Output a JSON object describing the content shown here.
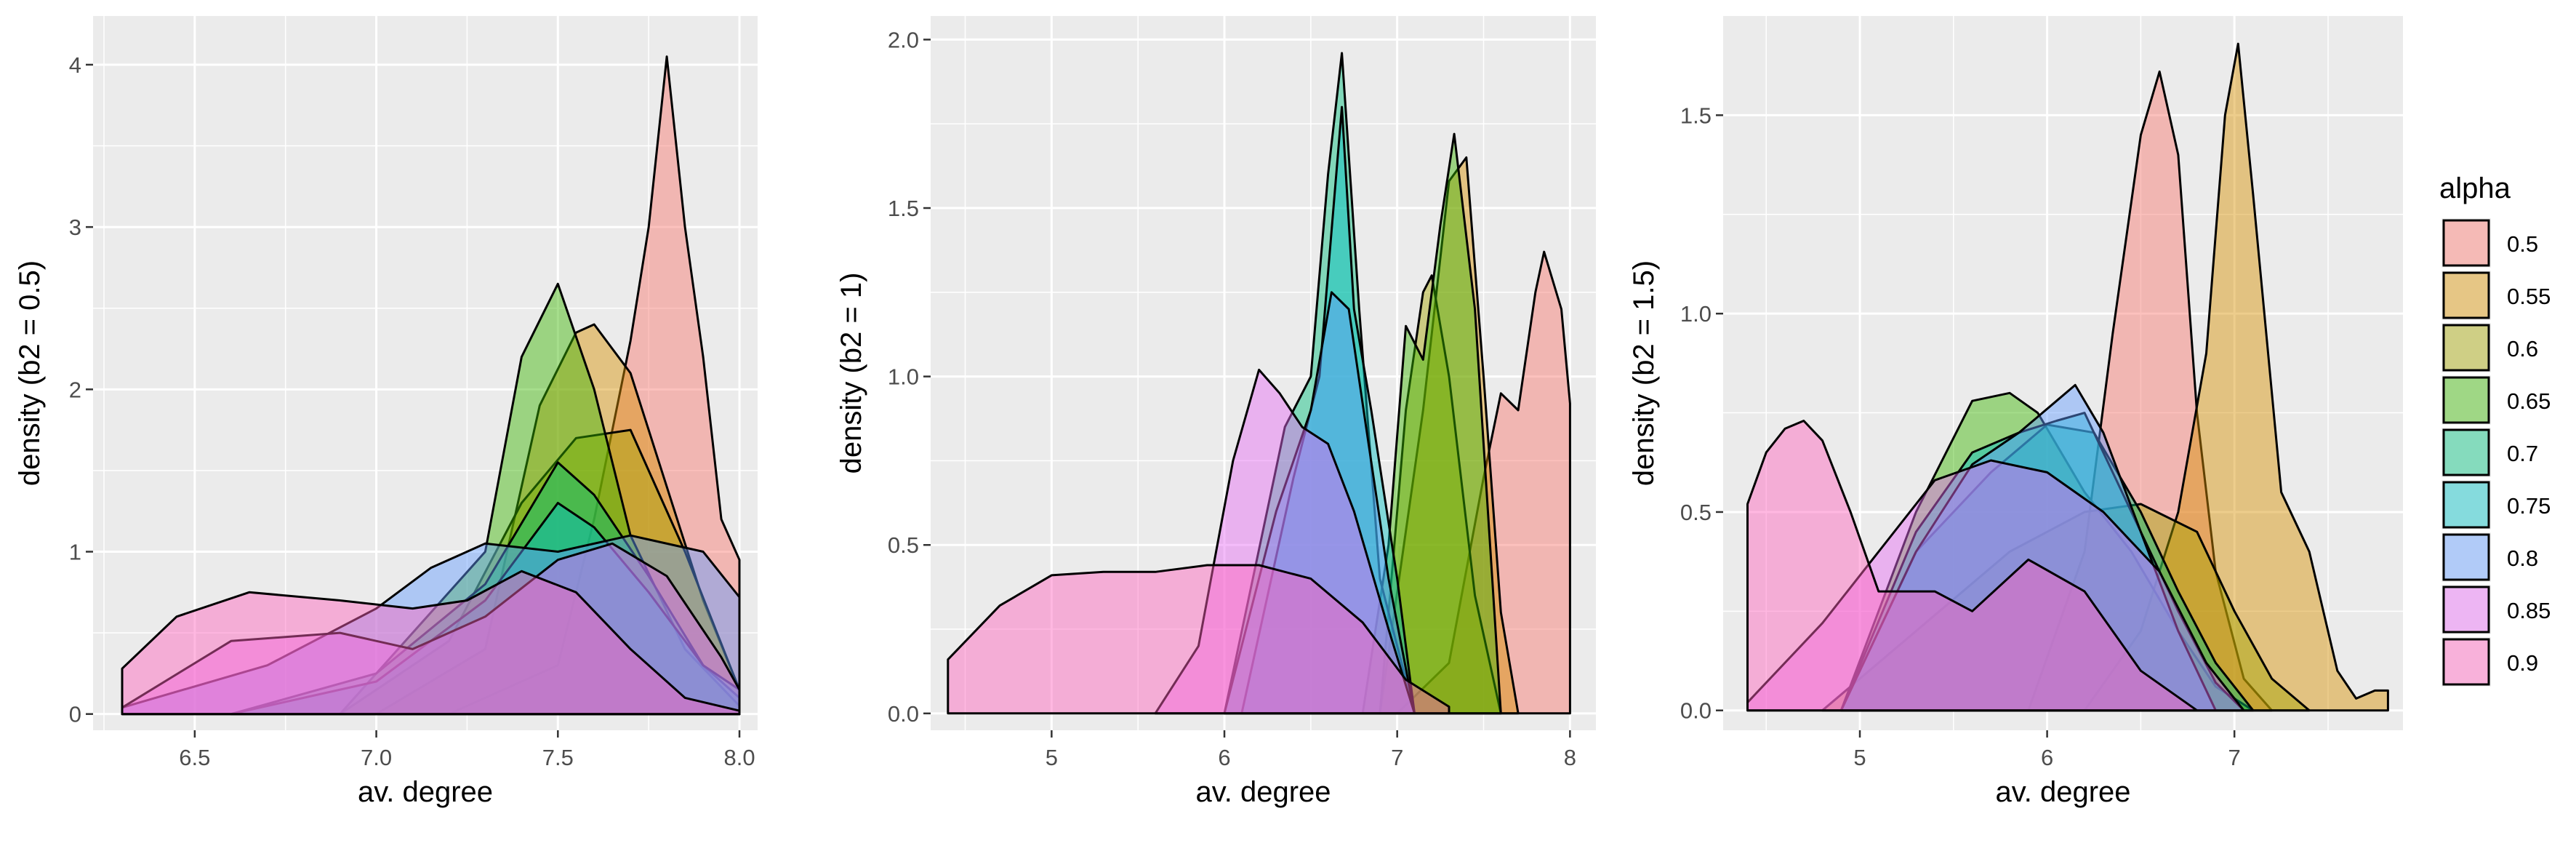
{
  "chart_data": [
    {
      "type": "area",
      "xlabel": "av. degree",
      "ylabel": "density (b2 = 0.5)",
      "xlim": [
        6.22,
        8.05
      ],
      "ylim": [
        -0.1,
        4.3
      ],
      "xticks": [
        6.5,
        7.0,
        7.5,
        8.0
      ],
      "xtick_labels": [
        "6.5",
        "7.0",
        "7.5",
        "8.0"
      ],
      "yticks": [
        0,
        1,
        2,
        3,
        4
      ],
      "ytick_labels": [
        "0",
        "1",
        "2",
        "3",
        "4"
      ],
      "grid": true,
      "series": [
        {
          "name": "0.5",
          "x": [
            7.2,
            7.5,
            7.6,
            7.7,
            7.75,
            7.8,
            7.85,
            7.9,
            7.95,
            8.0
          ],
          "y": [
            0,
            0.3,
            1.2,
            2.3,
            3.0,
            4.05,
            3.0,
            2.2,
            1.2,
            0.95
          ]
        },
        {
          "name": "0.55",
          "x": [
            7.0,
            7.3,
            7.45,
            7.55,
            7.6,
            7.7,
            7.8,
            7.9,
            8.0
          ],
          "y": [
            0,
            0.4,
            1.9,
            2.35,
            2.4,
            2.1,
            1.4,
            0.7,
            0.15
          ]
        },
        {
          "name": "0.6",
          "x": [
            6.9,
            7.2,
            7.4,
            7.55,
            7.7,
            7.85,
            8.0
          ],
          "y": [
            0,
            0.45,
            1.3,
            1.7,
            1.75,
            1.0,
            0.15
          ]
        },
        {
          "name": "0.65",
          "x": [
            6.9,
            7.3,
            7.4,
            7.5,
            7.6,
            7.7,
            7.85,
            8.0
          ],
          "y": [
            0,
            1.0,
            2.2,
            2.65,
            2.0,
            1.1,
            0.4,
            0.05
          ]
        },
        {
          "name": "0.7",
          "x": [
            6.6,
            7.0,
            7.3,
            7.5,
            7.6,
            7.75,
            7.9,
            8.0
          ],
          "y": [
            0,
            0.25,
            0.8,
            1.55,
            1.35,
            0.85,
            0.3,
            0.1
          ]
        },
        {
          "name": "0.75",
          "x": [
            6.6,
            7.0,
            7.3,
            7.5,
            7.6,
            7.75,
            7.9,
            8.0
          ],
          "y": [
            0,
            0.2,
            0.7,
            1.3,
            1.15,
            0.75,
            0.3,
            0.15
          ]
        },
        {
          "name": "0.8",
          "x": [
            6.3,
            6.7,
            7.0,
            7.15,
            7.3,
            7.5,
            7.7,
            7.9,
            8.0
          ],
          "y": [
            0.04,
            0.3,
            0.65,
            0.9,
            1.05,
            1.0,
            1.1,
            1.0,
            0.72
          ]
        },
        {
          "name": "0.85",
          "x": [
            6.3,
            6.6,
            6.9,
            7.1,
            7.3,
            7.5,
            7.65,
            7.8,
            7.95,
            8.0
          ],
          "y": [
            0.04,
            0.45,
            0.5,
            0.4,
            0.6,
            0.95,
            1.05,
            0.85,
            0.35,
            0.15
          ]
        },
        {
          "name": "0.9",
          "x": [
            6.3,
            6.45,
            6.65,
            6.9,
            7.1,
            7.25,
            7.4,
            7.55,
            7.7,
            7.85,
            8.0
          ],
          "y": [
            0.28,
            0.6,
            0.75,
            0.7,
            0.65,
            0.7,
            0.88,
            0.75,
            0.4,
            0.1,
            0.02
          ]
        }
      ]
    },
    {
      "type": "area",
      "xlabel": "av. degree",
      "ylabel": "density (b2 = 1)",
      "xlim": [
        4.3,
        8.15
      ],
      "ylim": [
        -0.05,
        2.07
      ],
      "xticks": [
        5,
        6,
        7,
        8
      ],
      "xtick_labels": [
        "5",
        "6",
        "7",
        "8"
      ],
      "yticks": [
        0,
        0.5,
        1.0,
        1.5,
        2.0
      ],
      "ytick_labels": [
        "0.0",
        "0.5",
        "1.0",
        "1.5",
        "2.0"
      ],
      "grid": true,
      "series": [
        {
          "name": "0.5",
          "x": [
            7.0,
            7.3,
            7.5,
            7.6,
            7.7,
            7.8,
            7.85,
            7.95,
            8.0
          ],
          "y": [
            0,
            0.15,
            0.7,
            0.95,
            0.9,
            1.25,
            1.37,
            1.2,
            0.92
          ]
        },
        {
          "name": "0.55",
          "x": [
            6.9,
            7.15,
            7.3,
            7.4,
            7.5,
            7.6,
            7.7
          ],
          "y": [
            0,
            0.9,
            1.58,
            1.65,
            1.0,
            0.3,
            0
          ]
        },
        {
          "name": "0.6",
          "x": [
            6.9,
            7.05,
            7.15,
            7.2,
            7.3,
            7.45,
            7.6
          ],
          "y": [
            0,
            0.9,
            1.25,
            1.3,
            1.0,
            0.35,
            0
          ]
        },
        {
          "name": "0.65",
          "x": [
            6.8,
            6.95,
            7.05,
            7.15,
            7.25,
            7.33,
            7.45,
            7.6
          ],
          "y": [
            0,
            0.5,
            1.15,
            1.05,
            1.45,
            1.72,
            1.2,
            0
          ]
        },
        {
          "name": "0.7",
          "x": [
            6.0,
            6.35,
            6.5,
            6.6,
            6.68,
            6.78,
            6.9,
            7.1
          ],
          "y": [
            0,
            0.85,
            1.0,
            1.6,
            1.96,
            1.2,
            0.4,
            0
          ]
        },
        {
          "name": "0.75",
          "x": [
            6.1,
            6.4,
            6.55,
            6.68,
            6.75,
            6.85,
            7.0,
            7.1
          ],
          "y": [
            0,
            0.7,
            1.0,
            1.8,
            1.2,
            0.9,
            0.4,
            0
          ]
        },
        {
          "name": "0.8",
          "x": [
            6.0,
            6.3,
            6.5,
            6.62,
            6.72,
            6.82,
            6.95,
            7.1
          ],
          "y": [
            0,
            0.6,
            0.9,
            1.25,
            1.2,
            0.85,
            0.4,
            0
          ]
        },
        {
          "name": "0.85",
          "x": [
            5.6,
            5.85,
            6.05,
            6.2,
            6.32,
            6.45,
            6.6,
            6.75,
            6.95,
            7.1
          ],
          "y": [
            0,
            0.2,
            0.75,
            1.02,
            0.95,
            0.85,
            0.8,
            0.6,
            0.25,
            0
          ]
        },
        {
          "name": "0.9",
          "x": [
            4.4,
            4.7,
            5.0,
            5.3,
            5.6,
            5.9,
            6.2,
            6.5,
            6.8,
            7.05,
            7.3
          ],
          "y": [
            0.16,
            0.32,
            0.41,
            0.42,
            0.42,
            0.44,
            0.44,
            0.4,
            0.27,
            0.1,
            0.02
          ]
        }
      ]
    },
    {
      "type": "area",
      "xlabel": "av. degree",
      "ylabel": "density (b2 = 1.5)",
      "xlim": [
        4.27,
        7.9
      ],
      "ylim": [
        -0.05,
        1.75
      ],
      "xticks": [
        5,
        6,
        7
      ],
      "xtick_labels": [
        "5",
        "6",
        "7"
      ],
      "yticks": [
        0,
        0.5,
        1.0,
        1.5
      ],
      "ytick_labels": [
        "0.0",
        "0.5",
        "1.0",
        "1.5"
      ],
      "grid": true,
      "legend": {
        "title": "alpha",
        "position": "right"
      },
      "series": [
        {
          "name": "0.5",
          "x": [
            5.9,
            6.2,
            6.35,
            6.5,
            6.6,
            6.7,
            6.8,
            6.9,
            7.05,
            7.2
          ],
          "y": [
            0,
            0.4,
            0.95,
            1.45,
            1.61,
            1.4,
            0.75,
            0.35,
            0.08,
            0
          ]
        },
        {
          "name": "0.55",
          "x": [
            6.2,
            6.5,
            6.7,
            6.85,
            6.95,
            7.02,
            7.1,
            7.25,
            7.4,
            7.55,
            7.65,
            7.75,
            7.82
          ],
          "y": [
            0,
            0.2,
            0.5,
            0.9,
            1.5,
            1.68,
            1.3,
            0.55,
            0.4,
            0.1,
            0.03,
            0.05,
            0.05
          ]
        },
        {
          "name": "0.6",
          "x": [
            4.8,
            5.3,
            5.8,
            6.2,
            6.5,
            6.8,
            7.0,
            7.2,
            7.4
          ],
          "y": [
            0,
            0.2,
            0.4,
            0.5,
            0.52,
            0.45,
            0.25,
            0.08,
            0
          ]
        },
        {
          "name": "0.65",
          "x": [
            4.9,
            5.3,
            5.6,
            5.8,
            5.95,
            6.2,
            6.45,
            6.7,
            6.9,
            7.1
          ],
          "y": [
            0,
            0.5,
            0.78,
            0.8,
            0.75,
            0.55,
            0.4,
            0.2,
            0.06,
            0
          ]
        },
        {
          "name": "0.7",
          "x": [
            4.9,
            5.3,
            5.7,
            6.0,
            6.25,
            6.5,
            6.7,
            6.9,
            7.1
          ],
          "y": [
            0,
            0.4,
            0.6,
            0.72,
            0.7,
            0.5,
            0.3,
            0.12,
            0
          ]
        },
        {
          "name": "0.75",
          "x": [
            4.9,
            5.3,
            5.6,
            5.85,
            6.05,
            6.2,
            6.45,
            6.7,
            6.9,
            7.05
          ],
          "y": [
            0,
            0.45,
            0.65,
            0.7,
            0.73,
            0.75,
            0.5,
            0.25,
            0.07,
            0
          ]
        },
        {
          "name": "0.8",
          "x": [
            4.9,
            5.3,
            5.6,
            5.85,
            6.05,
            6.15,
            6.3,
            6.5,
            6.7,
            6.9
          ],
          "y": [
            0,
            0.4,
            0.62,
            0.7,
            0.78,
            0.82,
            0.7,
            0.45,
            0.2,
            0
          ]
        },
        {
          "name": "0.85",
          "x": [
            4.4,
            4.8,
            5.1,
            5.4,
            5.7,
            6.0,
            6.3,
            6.6,
            6.85,
            7.05
          ],
          "y": [
            0.02,
            0.22,
            0.4,
            0.58,
            0.63,
            0.6,
            0.5,
            0.35,
            0.12,
            0
          ]
        },
        {
          "name": "0.9",
          "x": [
            4.4,
            4.5,
            4.6,
            4.7,
            4.8,
            4.95,
            5.1,
            5.4,
            5.6,
            5.9,
            6.2,
            6.5,
            6.8
          ],
          "y": [
            0.52,
            0.65,
            0.71,
            0.73,
            0.68,
            0.5,
            0.3,
            0.3,
            0.25,
            0.38,
            0.3,
            0.1,
            0
          ]
        }
      ]
    }
  ]
}
